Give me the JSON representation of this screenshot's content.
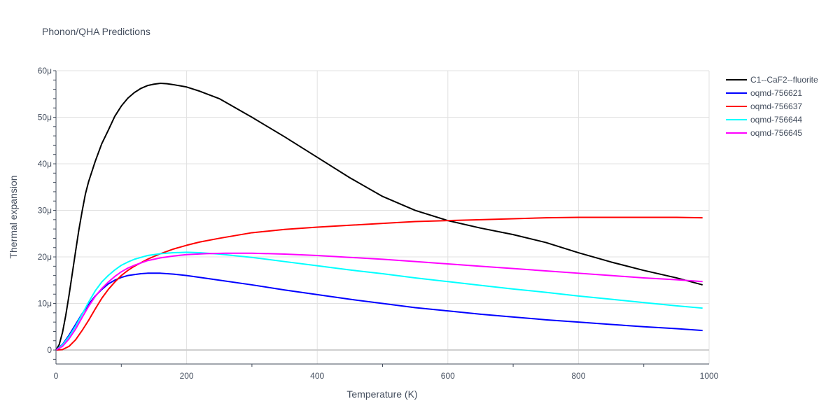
{
  "chart_data": {
    "type": "line",
    "title": "Phonon/QHA Predictions",
    "xlabel": "Temperature (K)",
    "ylabel": "Thermal expansion",
    "xlim": [
      0,
      1000
    ],
    "ylim": [
      -3e-06,
      6e-05
    ],
    "x_ticks": [
      0,
      200,
      400,
      600,
      800,
      1000
    ],
    "x_tick_labels": [
      "0",
      "200",
      "400",
      "600",
      "800",
      "1000"
    ],
    "y_ticks": [
      0,
      1e-05,
      2e-05,
      3e-05,
      4e-05,
      5e-05,
      6e-05
    ],
    "y_tick_labels": [
      "0",
      "10μ",
      "20μ",
      "30μ",
      "40μ",
      "50μ",
      "60μ"
    ],
    "grid": true,
    "legend_position": "top-right",
    "series": [
      {
        "name": "C1--CaF2--fluorite",
        "color": "#000000",
        "x": [
          0,
          5,
          10,
          15,
          20,
          25,
          30,
          35,
          40,
          45,
          50,
          60,
          70,
          80,
          90,
          100,
          110,
          120,
          130,
          140,
          150,
          160,
          170,
          180,
          200,
          220,
          250,
          300,
          350,
          400,
          450,
          500,
          550,
          600,
          650,
          700,
          750,
          800,
          850,
          900,
          950,
          990
        ],
        "y": [
          0,
          1.2e-06,
          3.8e-06,
          7.5e-06,
          1.18e-05,
          1.65e-05,
          2.12e-05,
          2.58e-05,
          2.98e-05,
          3.35e-05,
          3.62e-05,
          4.05e-05,
          4.43e-05,
          4.72e-05,
          5.02e-05,
          5.24e-05,
          5.41e-05,
          5.53e-05,
          5.62e-05,
          5.68e-05,
          5.71e-05,
          5.73e-05,
          5.72e-05,
          5.7e-05,
          5.65e-05,
          5.56e-05,
          5.4e-05,
          5e-05,
          4.58e-05,
          4.14e-05,
          3.7e-05,
          3.3e-05,
          3e-05,
          2.78e-05,
          2.62e-05,
          2.48e-05,
          2.31e-05,
          2.09e-05,
          1.89e-05,
          1.71e-05,
          1.55e-05,
          1.4e-05
        ]
      },
      {
        "name": "oqmd-756621",
        "color": "#0000ff",
        "x": [
          0,
          10,
          20,
          30,
          40,
          50,
          60,
          70,
          80,
          90,
          100,
          110,
          120,
          130,
          140,
          150,
          160,
          180,
          200,
          220,
          250,
          300,
          350,
          400,
          450,
          500,
          550,
          600,
          650,
          700,
          750,
          800,
          850,
          900,
          950,
          990
        ],
        "y": [
          0,
          1.2e-06,
          3.2e-06,
          5.5e-06,
          7.8e-06,
          9.8e-06,
          1.16e-05,
          1.3e-05,
          1.42e-05,
          1.5e-05,
          1.56e-05,
          1.6e-05,
          1.62e-05,
          1.64e-05,
          1.65e-05,
          1.65e-05,
          1.65e-05,
          1.63e-05,
          1.6e-05,
          1.56e-05,
          1.5e-05,
          1.4e-05,
          1.29e-05,
          1.19e-05,
          1.09e-05,
          1e-05,
          9.1e-06,
          8.4e-06,
          7.7e-06,
          7.1e-06,
          6.5e-06,
          6e-06,
          5.5e-06,
          5e-06,
          4.6e-06,
          4.2e-06
        ]
      },
      {
        "name": "oqmd-756637",
        "color": "#ff0000",
        "x": [
          0,
          10,
          20,
          30,
          40,
          50,
          60,
          70,
          80,
          90,
          100,
          110,
          120,
          140,
          160,
          180,
          200,
          220,
          250,
          300,
          350,
          400,
          450,
          500,
          550,
          600,
          650,
          700,
          750,
          800,
          850,
          900,
          950,
          990
        ],
        "y": [
          0,
          1e-07,
          8e-07,
          2.2e-06,
          4.2e-06,
          6.4e-06,
          8.8e-06,
          1.11e-05,
          1.3e-05,
          1.46e-05,
          1.6e-05,
          1.71e-05,
          1.8e-05,
          1.95e-05,
          2.07e-05,
          2.17e-05,
          2.25e-05,
          2.32e-05,
          2.4e-05,
          2.52e-05,
          2.59e-05,
          2.64e-05,
          2.68e-05,
          2.72e-05,
          2.76e-05,
          2.78e-05,
          2.8e-05,
          2.82e-05,
          2.84e-05,
          2.85e-05,
          2.85e-05,
          2.85e-05,
          2.85e-05,
          2.84e-05
        ]
      },
      {
        "name": "oqmd-756644",
        "color": "#00ffff",
        "x": [
          0,
          10,
          20,
          30,
          40,
          50,
          60,
          70,
          80,
          90,
          100,
          110,
          120,
          130,
          140,
          150,
          160,
          180,
          200,
          220,
          250,
          300,
          350,
          400,
          450,
          500,
          550,
          600,
          650,
          700,
          750,
          800,
          850,
          900,
          950,
          990
        ],
        "y": [
          0,
          1.1e-06,
          2.9e-06,
          5.1e-06,
          7.7e-06,
          1.03e-05,
          1.27e-05,
          1.46e-05,
          1.6e-05,
          1.72e-05,
          1.82e-05,
          1.89e-05,
          1.95e-05,
          1.99e-05,
          2.03e-05,
          2.05e-05,
          2.07e-05,
          2.09e-05,
          2.1e-05,
          2.09e-05,
          2.06e-05,
          1.99e-05,
          1.9e-05,
          1.81e-05,
          1.72e-05,
          1.64e-05,
          1.55e-05,
          1.47e-05,
          1.39e-05,
          1.31e-05,
          1.24e-05,
          1.16e-05,
          1.09e-05,
          1.02e-05,
          9.5e-06,
          9e-06
        ]
      },
      {
        "name": "oqmd-756645",
        "color": "#ff00ff",
        "x": [
          0,
          10,
          20,
          30,
          40,
          50,
          60,
          70,
          80,
          90,
          100,
          110,
          120,
          140,
          160,
          180,
          200,
          230,
          260,
          300,
          350,
          400,
          450,
          500,
          550,
          600,
          650,
          700,
          750,
          800,
          850,
          900,
          950,
          990
        ],
        "y": [
          0,
          8e-07,
          2.4e-06,
          4.5e-06,
          7e-06,
          9.4e-06,
          1.15e-05,
          1.32e-05,
          1.46e-05,
          1.58e-05,
          1.68e-05,
          1.76e-05,
          1.82e-05,
          1.92e-05,
          1.98e-05,
          2.02e-05,
          2.05e-05,
          2.07e-05,
          2.08e-05,
          2.08e-05,
          2.06e-05,
          2.03e-05,
          1.99e-05,
          1.95e-05,
          1.9e-05,
          1.85e-05,
          1.8e-05,
          1.75e-05,
          1.7e-05,
          1.65e-05,
          1.6e-05,
          1.55e-05,
          1.51e-05,
          1.47e-05
        ]
      }
    ]
  }
}
